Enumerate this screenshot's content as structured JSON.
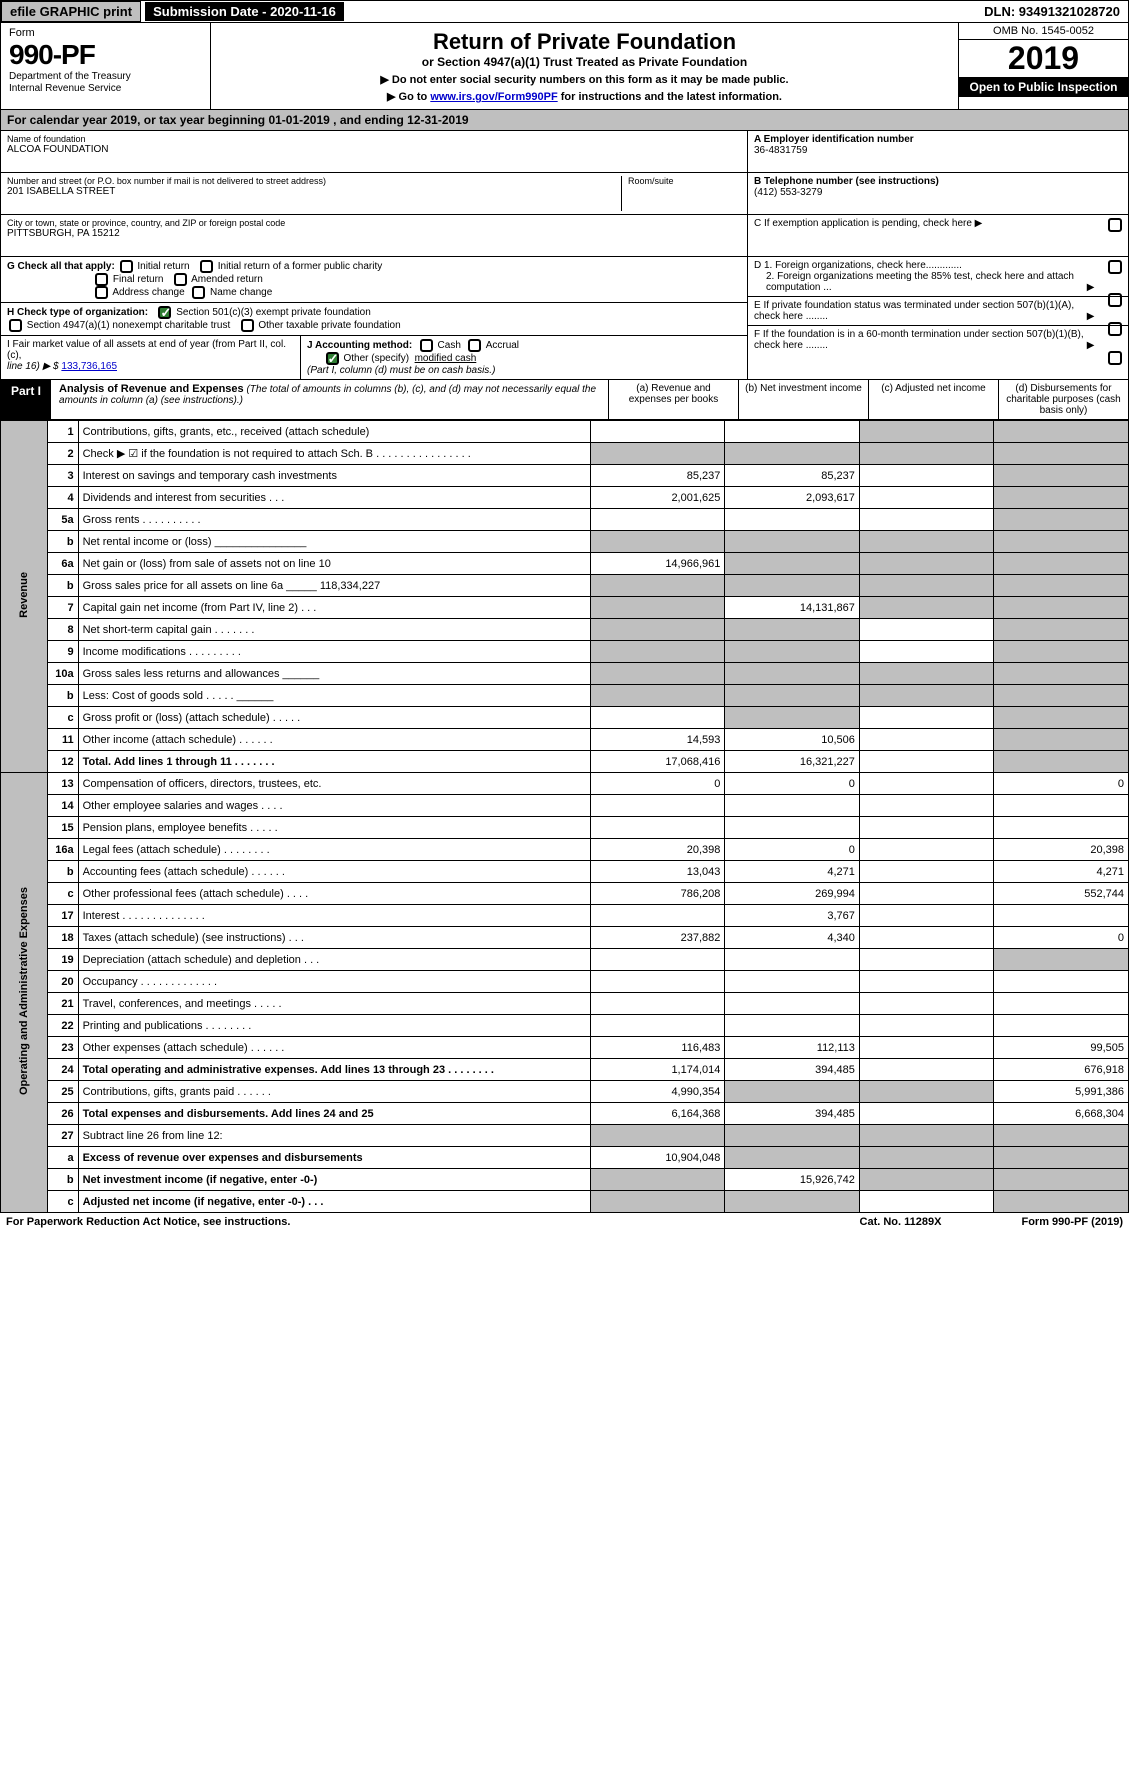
{
  "top": {
    "efile": "efile GRAPHIC print",
    "submission": "Submission Date - 2020-11-16",
    "dln": "DLN: 93491321028720"
  },
  "header": {
    "form_label": "Form",
    "form_number": "990-PF",
    "dept1": "Department of the Treasury",
    "dept2": "Internal Revenue Service",
    "title": "Return of Private Foundation",
    "subtitle": "or Section 4947(a)(1) Trust Treated as Private Foundation",
    "note1": "▶ Do not enter social security numbers on this form as it may be made public.",
    "note2_pre": "▶ Go to ",
    "note2_link": "www.irs.gov/Form990PF",
    "note2_post": " for instructions and the latest information.",
    "omb": "OMB No. 1545-0052",
    "year": "2019",
    "open": "Open to Public Inspection"
  },
  "calendar": "For calendar year 2019, or tax year beginning 01-01-2019                      , and ending 12-31-2019",
  "info": {
    "name_label": "Name of foundation",
    "name": "ALCOA FOUNDATION",
    "address_label": "Number and street (or P.O. box number if mail is not delivered to street address)",
    "room_label": "Room/suite",
    "address": "201 ISABELLA STREET",
    "city_label": "City or town, state or province, country, and ZIP or foreign postal code",
    "city": "PITTSBURGH, PA  15212",
    "ein_label": "A Employer identification number",
    "ein": "36-4831759",
    "phone_label": "B Telephone number (see instructions)",
    "phone": "(412) 553-3279",
    "c_label": "C If exemption application is pending, check here ▶",
    "d1": "D 1. Foreign organizations, check here.............",
    "d2": "2. Foreign organizations meeting the 85% test, check here and attach computation ...",
    "e": "E If private foundation status was terminated under section 507(b)(1)(A), check here ........",
    "f": "F If the foundation is in a 60-month termination under section 507(b)(1)(B), check here ........"
  },
  "g": {
    "label": "G Check all that apply:",
    "opts": [
      "Initial return",
      "Initial return of a former public charity",
      "Final return",
      "Amended return",
      "Address change",
      "Name change"
    ]
  },
  "h": {
    "label": "H Check type of organization:",
    "opt1": "Section 501(c)(3) exempt private foundation",
    "opt2": "Section 4947(a)(1) nonexempt charitable trust",
    "opt3": "Other taxable private foundation"
  },
  "i": {
    "label": "I Fair market value of all assets at end of year (from Part II, col. (c),",
    "line": "line 16) ▶ $",
    "value": "133,736,165"
  },
  "j": {
    "label": "J Accounting method:",
    "cash": "Cash",
    "accrual": "Accrual",
    "other_label": "Other (specify)",
    "other_value": "modified cash",
    "note": "(Part I, column (d) must be on cash basis.)"
  },
  "part1": {
    "label": "Part I",
    "title": "Analysis of Revenue and Expenses",
    "subtitle": "(The total of amounts in columns (b), (c), and (d) may not necessarily equal the amounts in column (a) (see instructions).)",
    "col_a": "(a) Revenue and expenses per books",
    "col_b": "(b) Net investment income",
    "col_c": "(c) Adjusted net income",
    "col_d": "(d) Disbursements for charitable purposes (cash basis only)"
  },
  "side": {
    "revenue": "Revenue",
    "expenses": "Operating and Administrative Expenses"
  },
  "rows": [
    {
      "num": "1",
      "desc": "Contributions, gifts, grants, etc., received (attach schedule)",
      "a": "",
      "b": "",
      "c": "",
      "d": "",
      "d_shade": true,
      "c_shade": true
    },
    {
      "num": "2",
      "desc": "Check ▶ ☑ if the foundation is not required to attach Sch. B . . . . . . . . . . . . . . . .",
      "a": "",
      "b": "",
      "c": "",
      "d": "",
      "a_shade": true,
      "b_shade": true,
      "d_shade": true,
      "c_shade": true
    },
    {
      "num": "3",
      "desc": "Interest on savings and temporary cash investments",
      "a": "85,237",
      "b": "85,237",
      "c": "",
      "d": "",
      "d_shade": true
    },
    {
      "num": "4",
      "desc": "Dividends and interest from securities . . .",
      "a": "2,001,625",
      "b": "2,093,617",
      "c": "",
      "d": "",
      "d_shade": true
    },
    {
      "num": "5a",
      "desc": "Gross rents . . . . . . . . . .",
      "a": "",
      "b": "",
      "c": "",
      "d": "",
      "d_shade": true
    },
    {
      "num": "b",
      "desc": "Net rental income or (loss)  _______________",
      "a": "",
      "b": "",
      "c": "",
      "d": "",
      "a_shade": true,
      "b_shade": true,
      "d_shade": true,
      "c_shade": true
    },
    {
      "num": "6a",
      "desc": "Net gain or (loss) from sale of assets not on line 10",
      "a": "14,966,961",
      "b": "",
      "c": "",
      "d": "",
      "b_shade": true,
      "d_shade": true,
      "c_shade": true
    },
    {
      "num": "b",
      "desc": "Gross sales price for all assets on line 6a _____ 118,334,227",
      "a": "",
      "b": "",
      "c": "",
      "d": "",
      "a_shade": true,
      "b_shade": true,
      "d_shade": true,
      "c_shade": true
    },
    {
      "num": "7",
      "desc": "Capital gain net income (from Part IV, line 2) . . .",
      "a": "",
      "b": "14,131,867",
      "c": "",
      "d": "",
      "a_shade": true,
      "d_shade": true,
      "c_shade": true
    },
    {
      "num": "8",
      "desc": "Net short-term capital gain . . . . . . .",
      "a": "",
      "b": "",
      "c": "",
      "d": "",
      "a_shade": true,
      "b_shade": true,
      "d_shade": true
    },
    {
      "num": "9",
      "desc": "Income modifications . . . . . . . . .",
      "a": "",
      "b": "",
      "c": "",
      "d": "",
      "a_shade": true,
      "b_shade": true,
      "d_shade": true
    },
    {
      "num": "10a",
      "desc": "Gross sales less returns and allowances  ______",
      "a": "",
      "b": "",
      "c": "",
      "d": "",
      "a_shade": true,
      "b_shade": true,
      "d_shade": true,
      "c_shade": true
    },
    {
      "num": "b",
      "desc": "Less: Cost of goods sold . . . . .  ______",
      "a": "",
      "b": "",
      "c": "",
      "d": "",
      "a_shade": true,
      "b_shade": true,
      "d_shade": true,
      "c_shade": true
    },
    {
      "num": "c",
      "desc": "Gross profit or (loss) (attach schedule) . . . . .",
      "a": "",
      "b": "",
      "c": "",
      "d": "",
      "b_shade": true,
      "d_shade": true
    },
    {
      "num": "11",
      "desc": "Other income (attach schedule) . . . . . .",
      "a": "14,593",
      "b": "10,506",
      "c": "",
      "d": "",
      "d_shade": true
    },
    {
      "num": "12",
      "desc": "Total. Add lines 1 through 11 . . . . . . .",
      "a": "17,068,416",
      "b": "16,321,227",
      "c": "",
      "d": "",
      "bold": true,
      "d_shade": true
    },
    {
      "num": "13",
      "desc": "Compensation of officers, directors, trustees, etc.",
      "a": "0",
      "b": "0",
      "c": "",
      "d": "0"
    },
    {
      "num": "14",
      "desc": "Other employee salaries and wages . . . .",
      "a": "",
      "b": "",
      "c": "",
      "d": ""
    },
    {
      "num": "15",
      "desc": "Pension plans, employee benefits . . . . .",
      "a": "",
      "b": "",
      "c": "",
      "d": ""
    },
    {
      "num": "16a",
      "desc": "Legal fees (attach schedule) . . . . . . . .",
      "a": "20,398",
      "b": "0",
      "c": "",
      "d": "20,398"
    },
    {
      "num": "b",
      "desc": "Accounting fees (attach schedule) . . . . . .",
      "a": "13,043",
      "b": "4,271",
      "c": "",
      "d": "4,271"
    },
    {
      "num": "c",
      "desc": "Other professional fees (attach schedule) . . . .",
      "a": "786,208",
      "b": "269,994",
      "c": "",
      "d": "552,744"
    },
    {
      "num": "17",
      "desc": "Interest . . . . . . . . . . . . . .",
      "a": "",
      "b": "3,767",
      "c": "",
      "d": ""
    },
    {
      "num": "18",
      "desc": "Taxes (attach schedule) (see instructions) . . .",
      "a": "237,882",
      "b": "4,340",
      "c": "",
      "d": "0"
    },
    {
      "num": "19",
      "desc": "Depreciation (attach schedule) and depletion . . .",
      "a": "",
      "b": "",
      "c": "",
      "d": "",
      "d_shade": true
    },
    {
      "num": "20",
      "desc": "Occupancy . . . . . . . . . . . . .",
      "a": "",
      "b": "",
      "c": "",
      "d": ""
    },
    {
      "num": "21",
      "desc": "Travel, conferences, and meetings . . . . .",
      "a": "",
      "b": "",
      "c": "",
      "d": ""
    },
    {
      "num": "22",
      "desc": "Printing and publications . . . . . . . .",
      "a": "",
      "b": "",
      "c": "",
      "d": ""
    },
    {
      "num": "23",
      "desc": "Other expenses (attach schedule) . . . . . .",
      "a": "116,483",
      "b": "112,113",
      "c": "",
      "d": "99,505"
    },
    {
      "num": "24",
      "desc": "Total operating and administrative expenses. Add lines 13 through 23 . . . . . . . .",
      "a": "1,174,014",
      "b": "394,485",
      "c": "",
      "d": "676,918",
      "bold": true
    },
    {
      "num": "25",
      "desc": "Contributions, gifts, grants paid . . . . . .",
      "a": "4,990,354",
      "b": "",
      "c": "",
      "d": "5,991,386",
      "b_shade": true,
      "c_shade": true
    },
    {
      "num": "26",
      "desc": "Total expenses and disbursements. Add lines 24 and 25",
      "a": "6,164,368",
      "b": "394,485",
      "c": "",
      "d": "6,668,304",
      "bold": true
    },
    {
      "num": "27",
      "desc": "Subtract line 26 from line 12:",
      "a": "",
      "b": "",
      "c": "",
      "d": "",
      "a_shade": true,
      "b_shade": true,
      "c_shade": true,
      "d_shade": true
    },
    {
      "num": "a",
      "desc": "Excess of revenue over expenses and disbursements",
      "a": "10,904,048",
      "b": "",
      "c": "",
      "d": "",
      "bold": true,
      "b_shade": true,
      "c_shade": true,
      "d_shade": true
    },
    {
      "num": "b",
      "desc": "Net investment income (if negative, enter -0-)",
      "a": "",
      "b": "15,926,742",
      "c": "",
      "d": "",
      "bold": true,
      "a_shade": true,
      "c_shade": true,
      "d_shade": true
    },
    {
      "num": "c",
      "desc": "Adjusted net income (if negative, enter -0-) . . .",
      "a": "",
      "b": "",
      "c": "",
      "d": "",
      "bold": true,
      "a_shade": true,
      "b_shade": true,
      "d_shade": true
    }
  ],
  "footer": {
    "left": "For Paperwork Reduction Act Notice, see instructions.",
    "center": "Cat. No. 11289X",
    "right": "Form 990-PF (2019)"
  }
}
